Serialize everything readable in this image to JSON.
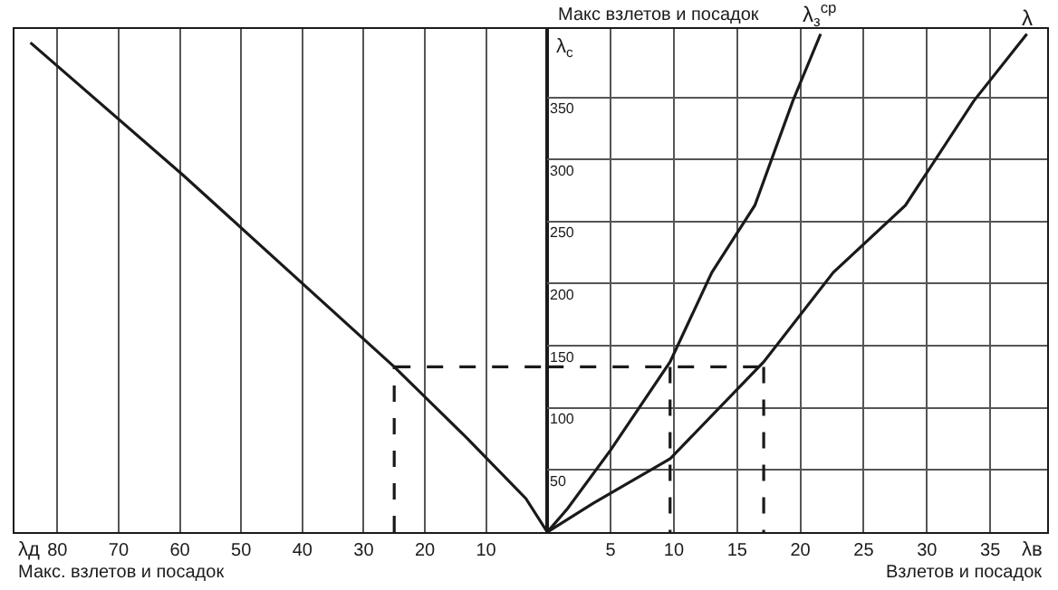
{
  "chart_data": [
    {
      "type": "line",
      "xlabel": "Макс. взлетов и посадок",
      "annotations": [
        "λд"
      ],
      "xlim": [
        87,
        0
      ],
      "xticks": [
        80,
        70,
        60,
        50,
        40,
        30,
        20,
        10
      ],
      "ylim": [
        0,
        405
      ],
      "tick_labels": "x",
      "grid": true,
      "legend": false,
      "marker": "none",
      "series": [
        {
          "color": "#1a1a1a",
          "line_style": "solid",
          "x": [
            84.4,
            59.4,
            25,
            13.2,
            3.5,
            0
          ],
          "values": [
            394,
            287,
            133,
            76,
            27,
            0
          ]
        },
        {
          "color": "#1a1a1a",
          "line_style": "dashed",
          "x": [
            25,
            25,
            null,
            25,
            0
          ],
          "values": [
            0,
            133,
            null,
            133,
            133
          ]
        }
      ]
    },
    {
      "type": "line",
      "title": "Макс взлетов и посадок",
      "ylabel": "λ$_{c}$",
      "xlabel": "Взлетов и посадок",
      "annotations": [
        "λв"
      ],
      "xlim": [
        0,
        39.5
      ],
      "xticks": [
        5,
        10,
        15,
        20,
        25,
        30,
        35
      ],
      "ylim": [
        0,
        405
      ],
      "yticks": [
        50,
        100,
        150,
        200,
        250,
        300,
        350
      ],
      "grid": true,
      "legend": false,
      "marker": "none",
      "series": [
        {
          "name": "λ$_{з}$$^{ср}$",
          "color": "#1a1a1a",
          "line_style": "solid",
          "x": [
            0,
            1.6,
            5,
            9.7,
            13,
            16.4,
            19.4,
            21.6
          ],
          "values": [
            0,
            19,
            66,
            137,
            209,
            263,
            347,
            401
          ]
        },
        {
          "name": "λ",
          "color": "#1a1a1a",
          "line_style": "solid",
          "x": [
            0,
            3.6,
            9.7,
            17.1,
            22.6,
            28.3,
            33.7,
            37.9
          ],
          "values": [
            0,
            23,
            59,
            137,
            209,
            263,
            347,
            401
          ]
        },
        {
          "color": "#1a1a1a",
          "line_style": "dashed",
          "x": [
            0,
            17.1,
            null,
            9.7,
            9.7,
            null,
            17.1,
            17.1
          ],
          "values": [
            133,
            133,
            null,
            133,
            0,
            null,
            133,
            0
          ]
        }
      ]
    }
  ]
}
